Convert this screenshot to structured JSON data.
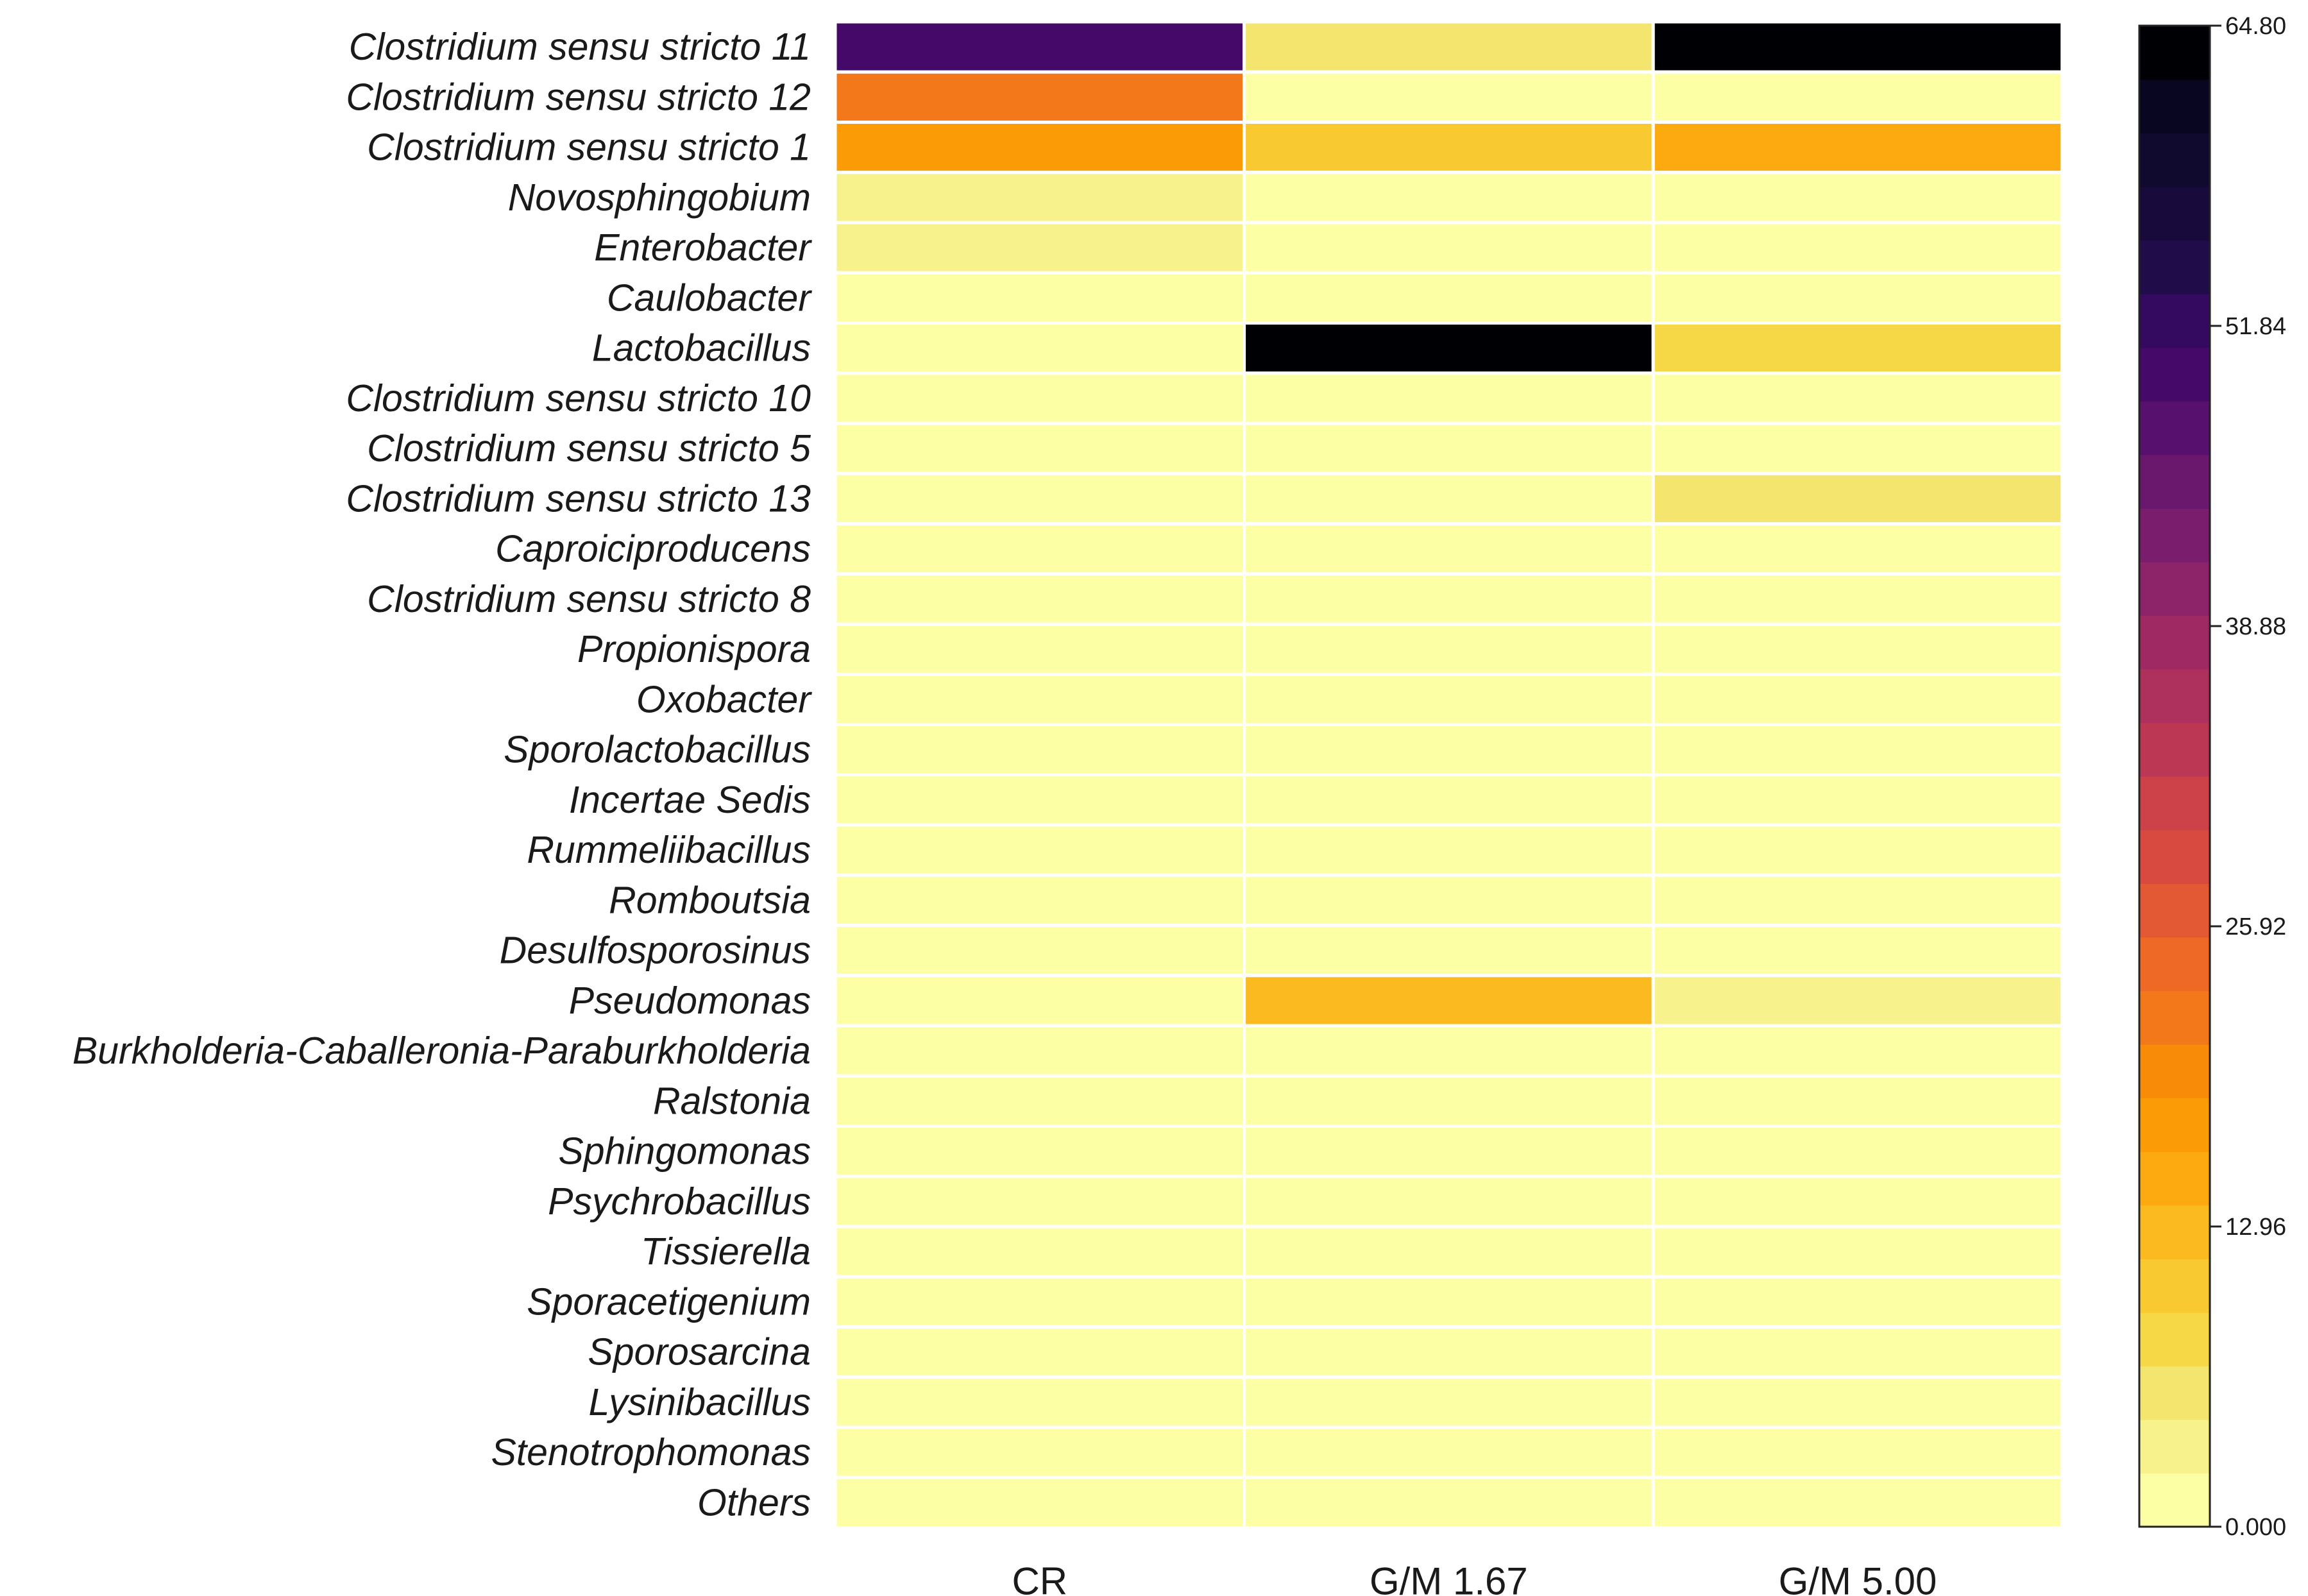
{
  "chart_data": {
    "type": "heatmap",
    "title": "",
    "xlabel": "",
    "ylabel": "",
    "columns": [
      "CR",
      "G/M 1.67",
      "G/M 5.00"
    ],
    "rows": [
      "Clostridium sensu stricto 11",
      "Clostridium sensu stricto 12",
      "Clostridium sensu stricto 1",
      "Novosphingobium",
      "Enterobacter",
      "Caulobacter",
      "Lactobacillus",
      "Clostridium sensu stricto 10",
      "Clostridium sensu stricto 5",
      "Clostridium sensu stricto 13",
      "Caproiciproducens",
      "Clostridium sensu stricto 8",
      "Propionispora",
      "Oxobacter",
      "Sporolactobacillus",
      "Incertae Sedis",
      "Rummeliibacillus",
      "Romboutsia",
      "Desulfosporosinus",
      "Pseudomonas",
      "Burkholderia-Caballeronia-Paraburkholderia",
      "Ralstonia",
      "Sphingomonas",
      "Psychrobacillus",
      "Tissierella",
      "Sporacetigenium",
      "Sporosarcina",
      "Lysinibacillus",
      "Stenotrophomonas",
      "Others"
    ],
    "values": [
      [
        50.5,
        6.5,
        64.8
      ],
      [
        21.0,
        0.8,
        0.8
      ],
      [
        16.5,
        11.5,
        15.0
      ],
      [
        2.8,
        0.8,
        0.8
      ],
      [
        3.0,
        0.8,
        0.8
      ],
      [
        0.6,
        0.6,
        0.6
      ],
      [
        0.6,
        64.8,
        7.8
      ],
      [
        0.5,
        0.5,
        0.5
      ],
      [
        0.5,
        0.5,
        0.5
      ],
      [
        0.5,
        0.5,
        5.2
      ],
      [
        0.5,
        0.5,
        0.5
      ],
      [
        0.5,
        0.5,
        0.5
      ],
      [
        0.5,
        0.5,
        0.5
      ],
      [
        0.5,
        0.5,
        0.5
      ],
      [
        0.5,
        0.5,
        0.5
      ],
      [
        0.5,
        0.5,
        0.5
      ],
      [
        0.5,
        0.5,
        0.5
      ],
      [
        0.5,
        0.5,
        0.5
      ],
      [
        0.5,
        0.5,
        0.5
      ],
      [
        0.5,
        13.0,
        2.6
      ],
      [
        0.5,
        0.5,
        0.5
      ],
      [
        0.5,
        0.5,
        0.5
      ],
      [
        0.5,
        0.5,
        0.5
      ],
      [
        0.5,
        0.5,
        0.5
      ],
      [
        0.5,
        0.5,
        0.5
      ],
      [
        0.5,
        0.5,
        0.5
      ],
      [
        0.5,
        0.5,
        0.5
      ],
      [
        0.5,
        0.5,
        0.5
      ],
      [
        0.5,
        0.5,
        0.5
      ],
      [
        0.5,
        0.5,
        0.5
      ]
    ],
    "colorbar": {
      "min": 0.0,
      "max": 64.8,
      "ticks": [
        0.0,
        12.96,
        25.92,
        38.88,
        51.84,
        64.8
      ],
      "tick_labels": [
        "0.000",
        "12.96",
        "25.92",
        "38.88",
        "51.84",
        "64.80"
      ],
      "colors": [
        "#fcffa4",
        "#f7f28c",
        "#f4e56e",
        "#f6d746",
        "#f9c932",
        "#fbba1f",
        "#fcaa0f",
        "#fb9b06",
        "#f88c09",
        "#f37819",
        "#ed6925",
        "#e35933",
        "#d84a3f",
        "#cc4248",
        "#bc3754",
        "#ae305c",
        "#9f2a63",
        "#8d2369",
        "#7a1d6d",
        "#6a176e",
        "#58106e",
        "#450a69",
        "#330a5f",
        "#210c4a",
        "#180b3c",
        "#0f0a2e",
        "#080620",
        "#000004"
      ]
    }
  }
}
